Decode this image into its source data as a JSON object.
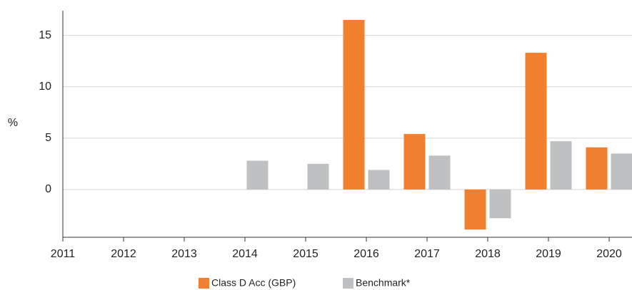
{
  "chart_data": {
    "type": "bar",
    "y_label": "%",
    "categories": [
      "2011",
      "2012",
      "2013",
      "2014",
      "2015",
      "2016",
      "2017",
      "2018",
      "2019",
      "2020"
    ],
    "series": [
      {
        "name": "Class D Acc (GBP)",
        "color": "#f08030",
        "values": [
          null,
          null,
          null,
          null,
          null,
          16.5,
          5.4,
          -3.9,
          13.3,
          4.1
        ]
      },
      {
        "name": "Benchmark*",
        "color": "#bfc0c2",
        "values": [
          null,
          null,
          null,
          2.8,
          2.5,
          1.9,
          3.3,
          -2.8,
          4.7,
          3.5
        ]
      }
    ],
    "ylim": [
      -4.65,
      17.4
    ],
    "yticks": [
      0,
      5,
      10,
      15
    ],
    "grid": true,
    "legend": "bottom"
  }
}
